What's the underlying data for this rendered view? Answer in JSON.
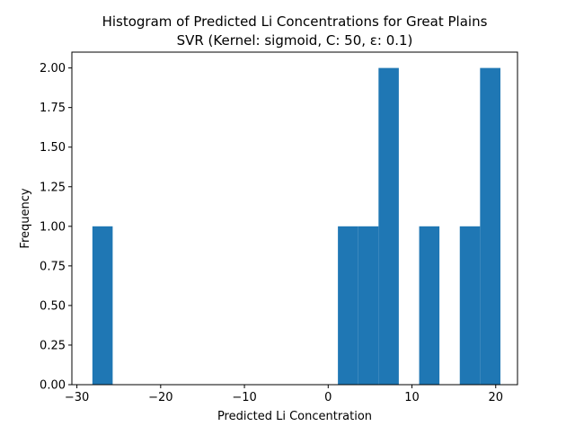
{
  "chart_data": {
    "type": "bar",
    "title_line1": "Histogram of Predicted Li Concentrations for Great Plains",
    "title_line2": "SVR (Kernel: sigmoid, C: 50, ε: 0.1)",
    "xlabel": "Predicted Li Concentration",
    "ylabel": "Frequency",
    "xlim": [
      -30.6,
      22.6
    ],
    "ylim": [
      0,
      2.1
    ],
    "xticks": [
      -30,
      -20,
      -10,
      0,
      10,
      20
    ],
    "xtick_labels": [
      "−30",
      "−20",
      "−10",
      "0",
      "10",
      "20"
    ],
    "yticks": [
      0,
      0.25,
      0.5,
      0.75,
      1.0,
      1.25,
      1.5,
      1.75,
      2.0
    ],
    "ytick_labels": [
      "0.00",
      "0.25",
      "0.50",
      "0.75",
      "1.00",
      "1.25",
      "1.50",
      "1.75",
      "2.00"
    ],
    "bar_color": "#1f77b4",
    "bins": [
      {
        "x0": -28.15,
        "x1": -25.73,
        "count": 1
      },
      {
        "x0": 1.16,
        "x1": 3.59,
        "count": 1
      },
      {
        "x0": 3.59,
        "x1": 6.01,
        "count": 1
      },
      {
        "x0": 6.01,
        "x1": 8.43,
        "count": 2
      },
      {
        "x0": 10.86,
        "x1": 13.28,
        "count": 1
      },
      {
        "x0": 15.71,
        "x1": 18.13,
        "count": 1
      },
      {
        "x0": 18.13,
        "x1": 20.56,
        "count": 2
      }
    ],
    "grid": false,
    "legend": "none"
  }
}
